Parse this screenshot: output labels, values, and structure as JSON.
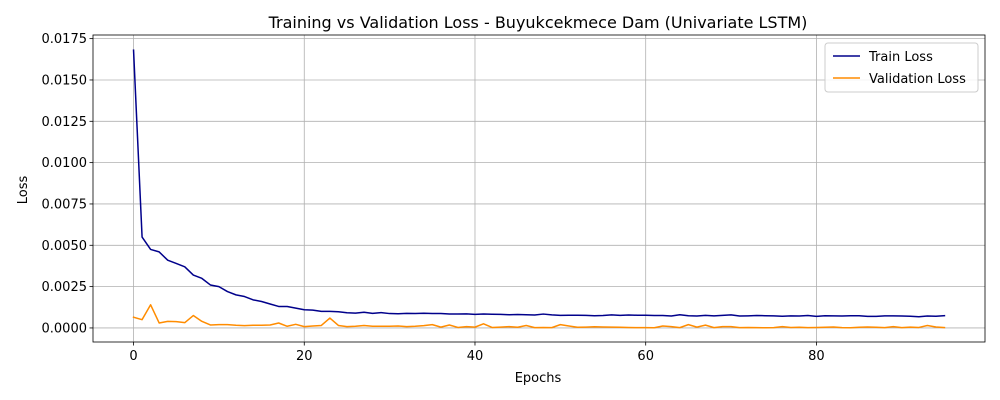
{
  "chart_data": {
    "type": "line",
    "title": "Training vs Validation Loss - Buyukcekmece Dam (Univariate LSTM)",
    "xlabel": "Epochs",
    "ylabel": "Loss",
    "xlim": [
      -4.75,
      99.75
    ],
    "ylim": [
      -0.00085,
      0.01772
    ],
    "xticks": [
      0,
      20,
      40,
      60,
      80
    ],
    "xtick_labels": [
      "0",
      "20",
      "40",
      "60",
      "80"
    ],
    "yticks": [
      0,
      0.0025,
      0.005,
      0.0075,
      0.01,
      0.0125,
      0.015,
      0.0175
    ],
    "ytick_labels": [
      "0.0000",
      "0.0025",
      "0.0050",
      "0.0075",
      "0.0100",
      "0.0125",
      "0.0150",
      "0.0175"
    ],
    "grid": true,
    "legend_position": "top-right",
    "series": [
      {
        "name": "Train Loss",
        "color": "#00008b",
        "values": [
          0.0168,
          0.0055,
          0.00475,
          0.0046,
          0.0041,
          0.0039,
          0.0037,
          0.0032,
          0.003,
          0.0026,
          0.0025,
          0.0022,
          0.002,
          0.0019,
          0.0017,
          0.0016,
          0.00145,
          0.0013,
          0.0013,
          0.0012,
          0.0011,
          0.00108,
          0.001,
          0.001,
          0.00098,
          0.00092,
          0.0009,
          0.00095,
          0.00088,
          0.00093,
          0.00087,
          0.00086,
          0.00088,
          0.00087,
          0.00089,
          0.00087,
          0.00087,
          0.00084,
          0.00084,
          0.00085,
          0.00082,
          0.00084,
          0.00083,
          0.00082,
          0.0008,
          0.00081,
          0.0008,
          0.00078,
          0.00084,
          0.00079,
          0.00076,
          0.00077,
          0.00077,
          0.00076,
          0.00074,
          0.00075,
          0.00079,
          0.00076,
          0.00078,
          0.00077,
          0.00077,
          0.00075,
          0.00075,
          0.00072,
          0.0008,
          0.00074,
          0.00072,
          0.00076,
          0.00073,
          0.00076,
          0.00079,
          0.00072,
          0.00073,
          0.00075,
          0.00074,
          0.00073,
          0.00071,
          0.00073,
          0.00072,
          0.00075,
          0.0007,
          0.00074,
          0.00073,
          0.00072,
          0.00074,
          0.00074,
          0.0007,
          0.0007,
          0.00073,
          0.00073,
          0.00072,
          0.00071,
          0.00068,
          0.00072,
          0.00071,
          0.00074
        ]
      },
      {
        "name": "Validation Loss",
        "color": "#ff8c00",
        "values": [
          0.00065,
          0.0005,
          0.0014,
          0.0003,
          0.0004,
          0.00038,
          0.00032,
          0.00075,
          0.0004,
          0.00018,
          0.0002,
          0.0002,
          0.00016,
          0.00014,
          0.00016,
          0.00016,
          0.00018,
          0.0003,
          0.0001,
          0.00022,
          8e-05,
          0.00012,
          0.00015,
          0.0006,
          0.00015,
          8e-05,
          0.0001,
          0.00015,
          0.0001,
          0.0001,
          0.0001,
          0.00012,
          8e-05,
          0.0001,
          0.00014,
          0.0002,
          5e-05,
          0.00018,
          3e-05,
          8e-05,
          5e-05,
          0.00025,
          3e-05,
          5e-05,
          8e-05,
          4e-05,
          0.00015,
          2e-05,
          3e-05,
          2e-05,
          0.0002,
          0.00012,
          4e-05,
          5e-05,
          7e-05,
          6e-05,
          5e-05,
          4e-05,
          3e-05,
          2e-05,
          2e-05,
          1e-05,
          0.00012,
          8e-05,
          2e-05,
          0.0002,
          5e-05,
          0.00017,
          2e-05,
          8e-05,
          8e-05,
          2e-05,
          3e-05,
          2e-05,
          1e-05,
          2e-05,
          8e-05,
          3e-05,
          4e-05,
          2e-05,
          3e-05,
          4e-05,
          6e-05,
          2e-05,
          1e-05,
          4e-05,
          6e-05,
          4e-05,
          2e-05,
          8e-05,
          2e-05,
          5e-05,
          3e-05,
          0.00015,
          6e-05,
          2e-05
        ]
      }
    ]
  },
  "colors": {
    "grid": "#b0b0b0",
    "axes": "#000000",
    "background": "#ffffff"
  }
}
